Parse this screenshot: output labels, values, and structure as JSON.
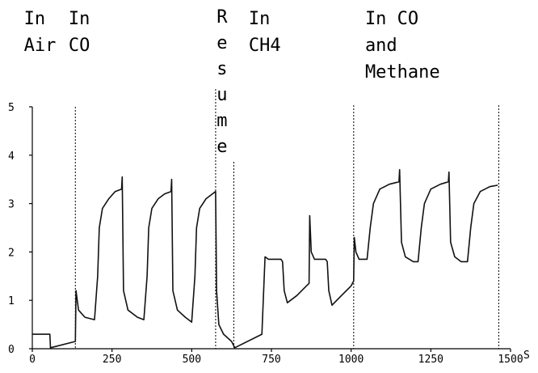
{
  "chart_data": {
    "type": "line",
    "title": "",
    "xlabel": "",
    "ylabel": "",
    "x_unit": "S",
    "xlim": [
      0,
      1500
    ],
    "ylim": [
      0,
      5
    ],
    "x_ticks": [
      "0",
      "250",
      "500",
      "750",
      "1000",
      "1250",
      "1500"
    ],
    "y_ticks": [
      "0",
      "1",
      "2",
      "3",
      "4",
      "5"
    ],
    "grid": false,
    "legend": "none",
    "phase_dividers": [
      135,
      575,
      632,
      1008,
      1463
    ],
    "annotations": [
      {
        "lines": [
          "In",
          "Air"
        ],
        "x": 65
      },
      {
        "lines": [
          "In",
          "CO"
        ],
        "x": 205
      },
      {
        "lines": [
          "R",
          "e",
          "s",
          "u",
          "m",
          "e"
        ],
        "x": 595,
        "vertical": true
      },
      {
        "lines": [
          "In",
          "CH4"
        ],
        "x": 770
      },
      {
        "lines": [
          "In CO",
          "and",
          "Methane"
        ],
        "x": 1135
      }
    ],
    "series": [
      {
        "color": "#111111",
        "points": [
          [
            0,
            0.3
          ],
          [
            55,
            0.3
          ],
          [
            57,
            0.02
          ],
          [
            135,
            0.15
          ],
          [
            137,
            1.2
          ],
          [
            145,
            0.8
          ],
          [
            165,
            0.65
          ],
          [
            195,
            0.6
          ],
          [
            205,
            1.5
          ],
          [
            210,
            2.5
          ],
          [
            220,
            2.9
          ],
          [
            240,
            3.1
          ],
          [
            260,
            3.25
          ],
          [
            280,
            3.3
          ],
          [
            282,
            3.55
          ],
          [
            286,
            1.2
          ],
          [
            300,
            0.8
          ],
          [
            330,
            0.65
          ],
          [
            350,
            0.6
          ],
          [
            360,
            1.5
          ],
          [
            365,
            2.5
          ],
          [
            375,
            2.9
          ],
          [
            395,
            3.1
          ],
          [
            415,
            3.2
          ],
          [
            435,
            3.25
          ],
          [
            437,
            3.5
          ],
          [
            441,
            1.2
          ],
          [
            455,
            0.8
          ],
          [
            480,
            0.65
          ],
          [
            500,
            0.55
          ],
          [
            510,
            1.5
          ],
          [
            515,
            2.5
          ],
          [
            525,
            2.9
          ],
          [
            545,
            3.1
          ],
          [
            565,
            3.2
          ],
          [
            575,
            3.25
          ],
          [
            578,
            1.2
          ],
          [
            585,
            0.5
          ],
          [
            600,
            0.3
          ],
          [
            625,
            0.15
          ],
          [
            635,
            0.02
          ],
          [
            720,
            0.3
          ],
          [
            730,
            1.9
          ],
          [
            740,
            1.85
          ],
          [
            780,
            1.85
          ],
          [
            785,
            1.8
          ],
          [
            790,
            1.2
          ],
          [
            800,
            0.95
          ],
          [
            830,
            1.1
          ],
          [
            860,
            1.3
          ],
          [
            868,
            1.35
          ],
          [
            870,
            2.75
          ],
          [
            875,
            2.0
          ],
          [
            885,
            1.85
          ],
          [
            920,
            1.85
          ],
          [
            925,
            1.8
          ],
          [
            930,
            1.2
          ],
          [
            940,
            0.9
          ],
          [
            970,
            1.1
          ],
          [
            1000,
            1.3
          ],
          [
            1008,
            1.4
          ],
          [
            1010,
            2.3
          ],
          [
            1015,
            2.0
          ],
          [
            1025,
            1.85
          ],
          [
            1050,
            1.85
          ],
          [
            1060,
            2.5
          ],
          [
            1070,
            3.0
          ],
          [
            1090,
            3.3
          ],
          [
            1120,
            3.4
          ],
          [
            1150,
            3.45
          ],
          [
            1152,
            3.7
          ],
          [
            1158,
            2.2
          ],
          [
            1170,
            1.9
          ],
          [
            1195,
            1.8
          ],
          [
            1210,
            1.8
          ],
          [
            1220,
            2.5
          ],
          [
            1230,
            3.0
          ],
          [
            1250,
            3.3
          ],
          [
            1280,
            3.4
          ],
          [
            1305,
            3.45
          ],
          [
            1307,
            3.65
          ],
          [
            1312,
            2.2
          ],
          [
            1325,
            1.9
          ],
          [
            1345,
            1.8
          ],
          [
            1365,
            1.8
          ],
          [
            1375,
            2.5
          ],
          [
            1385,
            3.0
          ],
          [
            1405,
            3.25
          ],
          [
            1435,
            3.35
          ],
          [
            1460,
            3.38
          ]
        ]
      }
    ]
  }
}
